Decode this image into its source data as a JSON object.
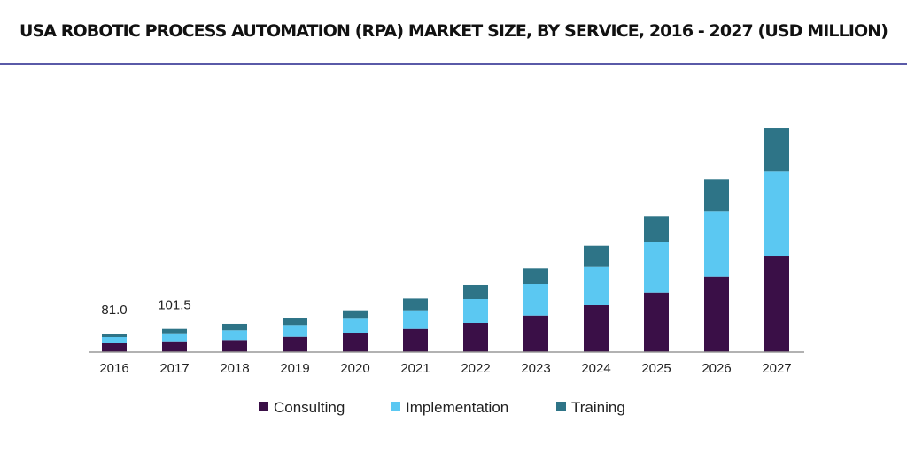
{
  "chart_data": {
    "type": "bar",
    "stacked": true,
    "title": "USA ROBOTIC PROCESS AUTOMATION (RPA) MARKET SIZE, BY SERVICE, 2016 - 2027 (USD MILLION)",
    "xlabel": "",
    "ylabel": "",
    "grid": false,
    "legend_position": "bottom",
    "categories": [
      "2016",
      "2017",
      "2018",
      "2019",
      "2020",
      "2021",
      "2022",
      "2023",
      "2024",
      "2025",
      "2026",
      "2027"
    ],
    "series": [
      {
        "name": "Consulting",
        "color": "#3a0f47",
        "values": [
          38.6,
          47.5,
          52.9,
          66.8,
          84.9,
          101.5,
          127.4,
          159.4,
          204.6,
          259.8,
          329.3,
          420.7
        ]
      },
      {
        "name": "Implementation",
        "color": "#5bc8f2",
        "values": [
          27.0,
          34.7,
          42.5,
          51.7,
          64.5,
          81.1,
          104.2,
          137.8,
          167.1,
          221.6,
          283.3,
          369.4
        ]
      },
      {
        "name": "Training",
        "color": "#2e7487",
        "values": [
          15.4,
          19.3,
          28.2,
          32.0,
          33.2,
          51.3,
          61.8,
          68.3,
          92.6,
          111.9,
          142.8,
          186.4
        ]
      }
    ],
    "data_labels": [
      {
        "category": "2016",
        "text": "81.0"
      },
      {
        "category": "2017",
        "text": "101.5"
      }
    ]
  }
}
